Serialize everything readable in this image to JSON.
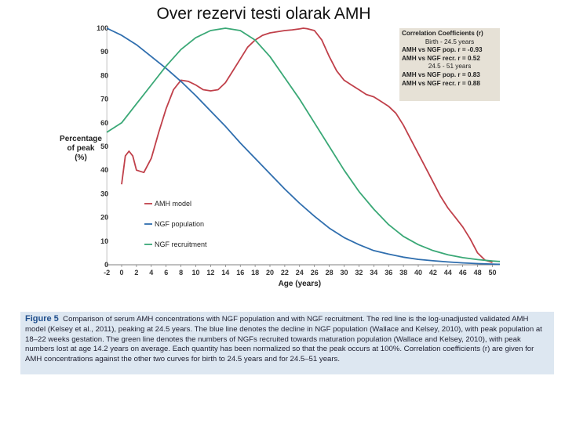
{
  "page_title": "Over rezervi testi olarak AMH",
  "chart_data": {
    "type": "line",
    "title": "",
    "xlabel": "Age (years)",
    "ylabel": [
      "Percentage",
      "of peak",
      "(%)"
    ],
    "xlim": [
      -2,
      51
    ],
    "ylim": [
      0,
      100
    ],
    "xticks": [
      -2,
      0,
      2,
      4,
      6,
      8,
      10,
      12,
      14,
      16,
      18,
      20,
      22,
      24,
      26,
      28,
      30,
      32,
      34,
      36,
      38,
      40,
      42,
      44,
      46,
      48,
      50
    ],
    "yticks": [
      0,
      10,
      20,
      30,
      40,
      50,
      60,
      70,
      80,
      90,
      100
    ],
    "series": [
      {
        "name": "AMH model",
        "color": "#c0404a",
        "x": [
          0,
          0.5,
          1,
          1.5,
          2,
          3,
          4,
          5,
          6,
          7,
          8,
          9,
          10,
          11,
          12,
          13,
          14,
          15,
          16,
          17,
          18,
          19,
          20,
          21,
          22,
          23,
          24,
          24.5,
          25,
          26,
          27,
          28,
          29,
          30,
          31,
          32,
          33,
          34,
          35,
          36,
          37,
          38,
          39,
          40,
          41,
          42,
          43,
          44,
          45,
          46,
          47,
          48,
          49,
          50
        ],
        "y": [
          34,
          46,
          48,
          46,
          40,
          39,
          45,
          56,
          66,
          74,
          78,
          77.5,
          76,
          74,
          73.5,
          74,
          77,
          82,
          87,
          92,
          95,
          97,
          98,
          98.5,
          99,
          99.3,
          99.7,
          100,
          99.8,
          99,
          95,
          88,
          82,
          78,
          76,
          74,
          72,
          71,
          69,
          67,
          64,
          59,
          53,
          47,
          41,
          35,
          29,
          24,
          20,
          16,
          11,
          5,
          2,
          1
        ]
      },
      {
        "name": "NGF population",
        "color": "#2f6eae",
        "x": [
          -2,
          0,
          2,
          4,
          6,
          8,
          10,
          12,
          14,
          16,
          18,
          20,
          22,
          24,
          26,
          28,
          30,
          32,
          34,
          36,
          38,
          40,
          42,
          44,
          46,
          48,
          50,
          51
        ],
        "y": [
          100,
          97,
          93,
          88,
          83,
          77.5,
          71.5,
          65,
          58.5,
          51.5,
          45,
          38.5,
          32,
          26,
          20.5,
          15.5,
          11.5,
          8.5,
          6,
          4.5,
          3.2,
          2.3,
          1.7,
          1.2,
          0.8,
          0.5,
          0.3,
          0.2
        ]
      },
      {
        "name": "NGF recruitment",
        "color": "#3aa876",
        "x": [
          -2,
          0,
          2,
          4,
          6,
          8,
          10,
          12,
          14,
          16,
          18,
          20,
          22,
          24,
          26,
          28,
          30,
          32,
          34,
          36,
          38,
          40,
          42,
          44,
          46,
          48,
          50,
          51
        ],
        "y": [
          56,
          60,
          68,
          76,
          84,
          91,
          96,
          99,
          100,
          99,
          95,
          88,
          79,
          70,
          60,
          50,
          40,
          31,
          23.5,
          17,
          12,
          8.5,
          6,
          4.2,
          3,
          2.2,
          1.6,
          1.4
        ]
      }
    ]
  },
  "legend": [
    "AMH model",
    "NGF population",
    "NGF recruitment"
  ],
  "correlation_box": {
    "title": "Correlation Coefficients (r)",
    "period1": "Birth - 24.5 years",
    "row1": "AMH vs NGF pop.   r = -0.93",
    "row2": "AMH vs NGF recr.   r =  0.52",
    "period2": "24.5 - 51 years",
    "row3": "AMH vs NGF pop.    r = 0.83",
    "row4": "AMH vs NGF recr.   r = 0.88"
  },
  "caption": {
    "label": "Figure 5",
    "text": "Comparison of serum AMH concentrations with NGF population and with NGF recruitment. The red line is the log-unadjusted validated AMH model (Kelsey et al., 2011), peaking at 24.5 years. The blue line denotes the decline in NGF population (Wallace and Kelsey, 2010), with peak population at 18–22 weeks gestation. The green line denotes the numbers of NGFs recruited towards maturation population (Wallace and Kelsey, 2010), with peak numbers lost at age 14.2 years on average. Each quantity has been normalized so that the peak occurs at 100%. Correlation coefficients (r) are given for AMH concentrations against the other two curves for birth to 24.5 years and for 24.5–51 years."
  }
}
